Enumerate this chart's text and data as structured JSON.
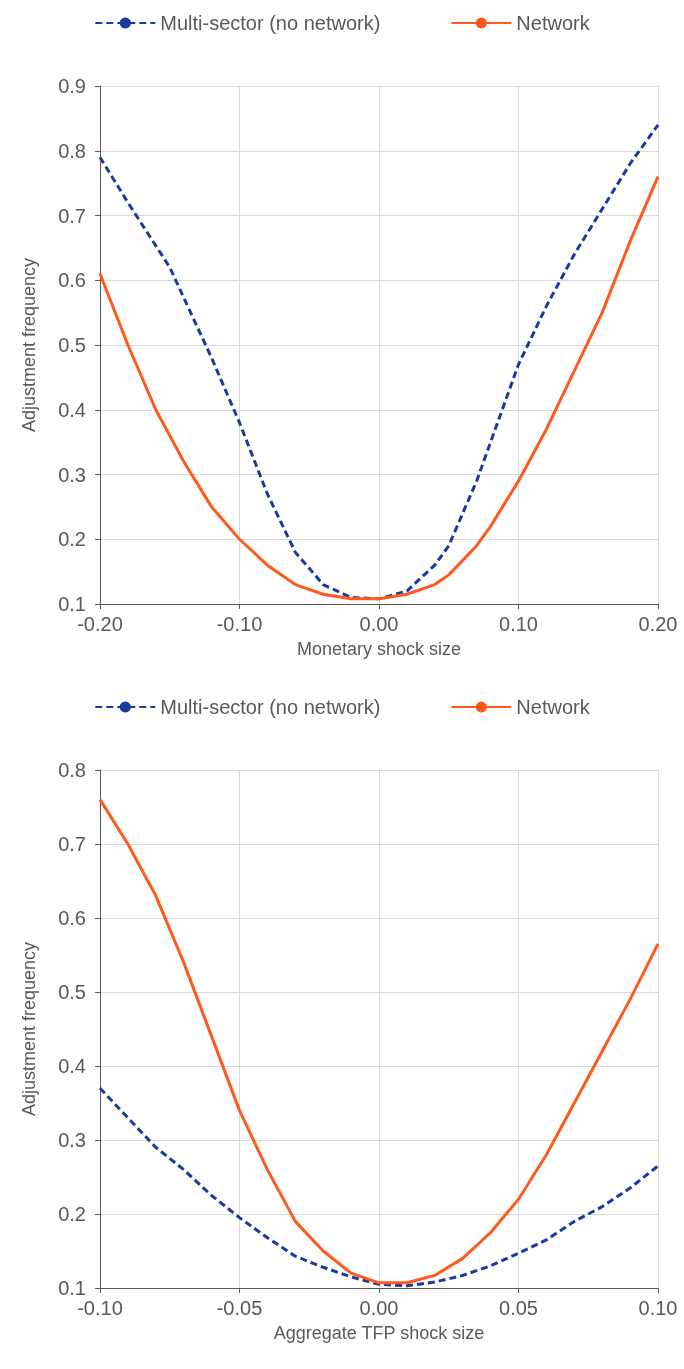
{
  "chart_data": [
    {
      "type": "line",
      "xlabel": "Monetary shock size",
      "ylabel": "Adjustment frequency",
      "legend": "top",
      "grid": true,
      "marker": "none",
      "xlim": [
        -0.2,
        0.2
      ],
      "xticks": [
        {
          "value": -0.2,
          "label": "-0.20"
        },
        {
          "value": -0.1,
          "label": "-0.10"
        },
        {
          "value": 0,
          "label": "0.00"
        },
        {
          "value": 0.1,
          "label": "0.10"
        },
        {
          "value": 0.2,
          "label": "0.20"
        }
      ],
      "ylim": [
        0.1,
        0.9
      ],
      "yticks": [
        0.1,
        0.2,
        0.3,
        0.4,
        0.5,
        0.6,
        0.7,
        0.8,
        0.9
      ],
      "series": [
        {
          "name": "Multi-sector (no network)",
          "color": "#1a3a9c",
          "line_style": "dashed",
          "x": [
            -0.2,
            -0.18,
            -0.15,
            -0.12,
            -0.1,
            -0.08,
            -0.06,
            -0.04,
            -0.02,
            0,
            0.02,
            0.04,
            0.05,
            0.07,
            0.09,
            0.1,
            0.12,
            0.14,
            0.16,
            0.18,
            0.2
          ],
          "values": [
            0.79,
            0.72,
            0.62,
            0.48,
            0.38,
            0.27,
            0.18,
            0.13,
            0.11,
            0.108,
            0.12,
            0.16,
            0.19,
            0.29,
            0.41,
            0.47,
            0.56,
            0.64,
            0.71,
            0.78,
            0.84
          ]
        },
        {
          "name": "Network",
          "color": "#fe5a1d",
          "line_style": "solid",
          "x": [
            -0.2,
            -0.18,
            -0.16,
            -0.14,
            -0.12,
            -0.1,
            -0.08,
            -0.06,
            -0.04,
            -0.02,
            0,
            0.02,
            0.04,
            0.05,
            0.07,
            0.08,
            0.1,
            0.12,
            0.14,
            0.16,
            0.18,
            0.2
          ],
          "values": [
            0.61,
            0.5,
            0.4,
            0.32,
            0.25,
            0.2,
            0.16,
            0.13,
            0.115,
            0.108,
            0.108,
            0.115,
            0.13,
            0.145,
            0.19,
            0.22,
            0.29,
            0.37,
            0.46,
            0.55,
            0.66,
            0.76
          ]
        }
      ]
    },
    {
      "type": "line",
      "xlabel": "Aggregate TFP shock size",
      "ylabel": "Adjustment frequency",
      "legend": "top",
      "grid": true,
      "marker": "none",
      "xlim": [
        -0.1,
        0.1
      ],
      "xticks": [
        {
          "value": -0.1,
          "label": "-0.10"
        },
        {
          "value": -0.05,
          "label": "-0.05"
        },
        {
          "value": 0,
          "label": "0.00"
        },
        {
          "value": 0.05,
          "label": "0.05"
        },
        {
          "value": 0.1,
          "label": "0.10"
        }
      ],
      "ylim": [
        0.1,
        0.8
      ],
      "yticks": [
        0.1,
        0.2,
        0.3,
        0.4,
        0.5,
        0.6,
        0.7,
        0.8
      ],
      "series": [
        {
          "name": "Multi-sector (no network)",
          "color": "#1a3a9c",
          "line_style": "dashed",
          "x": [
            -0.1,
            -0.09,
            -0.08,
            -0.07,
            -0.06,
            -0.05,
            -0.04,
            -0.03,
            -0.02,
            -0.01,
            0,
            0.01,
            0.02,
            0.03,
            0.04,
            0.05,
            0.06,
            0.07,
            0.08,
            0.09,
            0.1
          ],
          "values": [
            0.37,
            0.33,
            0.29,
            0.26,
            0.225,
            0.195,
            0.168,
            0.143,
            0.128,
            0.115,
            0.105,
            0.103,
            0.108,
            0.117,
            0.13,
            0.147,
            0.165,
            0.19,
            0.21,
            0.235,
            0.265
          ]
        },
        {
          "name": "Network",
          "color": "#fe5a1d",
          "line_style": "solid",
          "x": [
            -0.1,
            -0.09,
            -0.08,
            -0.07,
            -0.06,
            -0.05,
            -0.04,
            -0.03,
            -0.02,
            -0.01,
            0,
            0.01,
            0.02,
            0.03,
            0.04,
            0.05,
            0.06,
            0.07,
            0.08,
            0.09,
            0.1
          ],
          "values": [
            0.76,
            0.7,
            0.63,
            0.54,
            0.44,
            0.34,
            0.26,
            0.19,
            0.15,
            0.12,
            0.107,
            0.107,
            0.117,
            0.14,
            0.175,
            0.22,
            0.28,
            0.35,
            0.42,
            0.49,
            0.565
          ]
        }
      ]
    }
  ]
}
